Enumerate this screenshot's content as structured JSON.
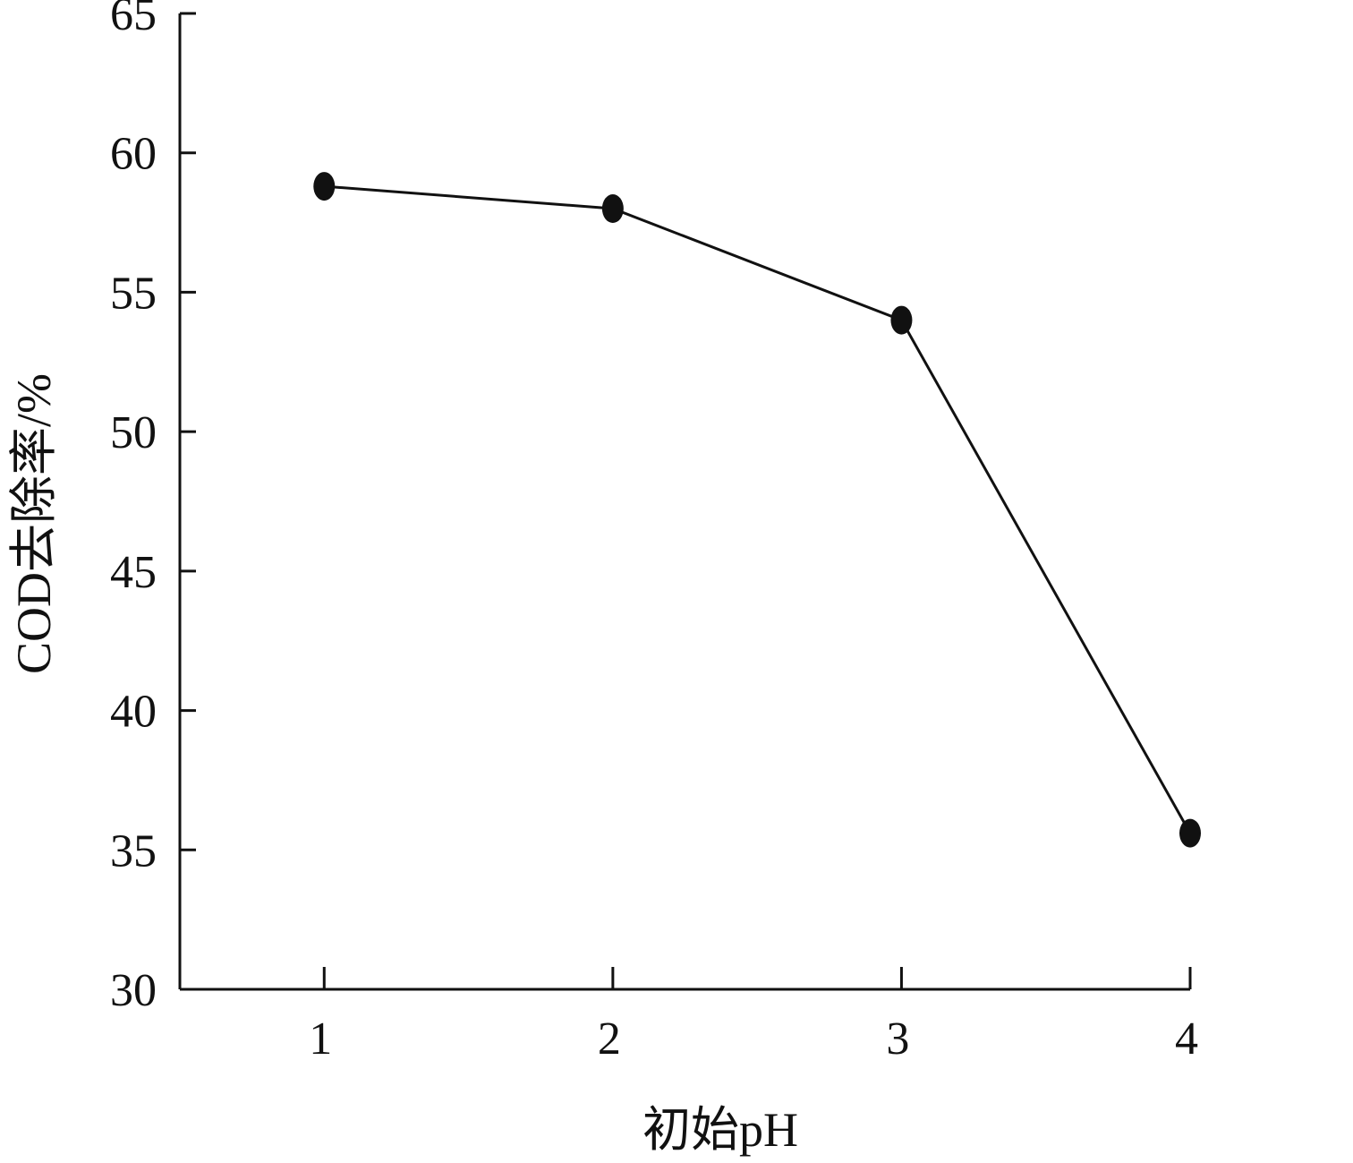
{
  "chart_data": {
    "type": "line",
    "title": "",
    "xlabel": "初始pH",
    "ylabel": "COD去除率/%",
    "x": [
      1,
      2,
      3,
      4
    ],
    "series": [
      {
        "values": [
          58.8,
          58.0,
          54.0,
          35.6
        ]
      }
    ],
    "xlim": [
      0.5,
      4
    ],
    "ylim": [
      30,
      65
    ],
    "x_ticks": [
      1,
      2,
      3,
      4
    ],
    "y_ticks": [
      30,
      35,
      40,
      45,
      50,
      55,
      60,
      65
    ],
    "grid": false,
    "legend": "none",
    "line_color": "#111111",
    "marker": "filled-ellipse"
  }
}
